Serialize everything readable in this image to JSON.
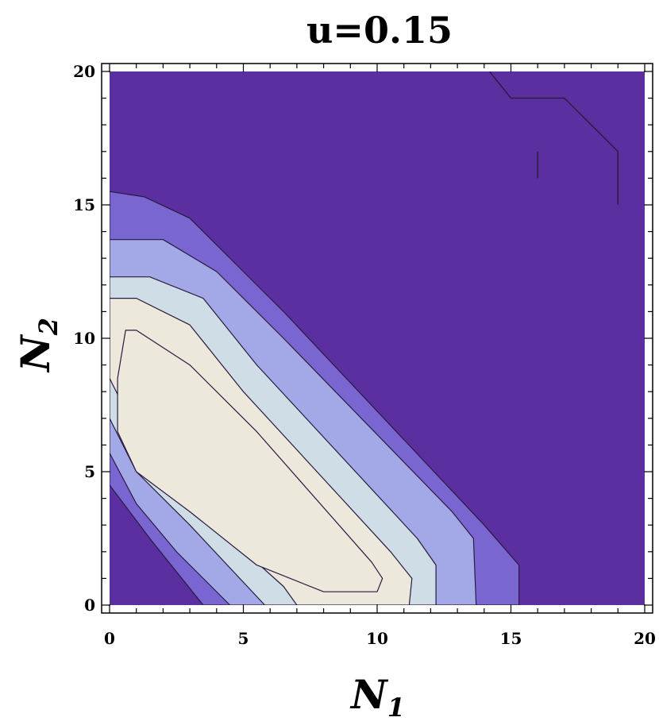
{
  "chart_data": {
    "type": "contour",
    "title": "u=0.15",
    "xlabel": {
      "main": "N",
      "sub": "1"
    },
    "ylabel": {
      "main": "N",
      "sub": "2"
    },
    "xlim": [
      0,
      20
    ],
    "ylim": [
      0,
      20
    ],
    "xticks": [
      0,
      5,
      10,
      15,
      20
    ],
    "yticks": [
      0,
      5,
      10,
      15,
      20
    ],
    "grid": false,
    "colors": {
      "background_level": "#5b2fa0",
      "levels": [
        "#7a66d0",
        "#a3a8e6",
        "#cfdde6",
        "#ece8dc"
      ],
      "contour_line": "#2a1a3e",
      "frame": "#000000"
    },
    "contour_bands": [
      {
        "level": 1,
        "boundary": [
          [
            0,
            4.5
          ],
          [
            1.5,
            2.5
          ],
          [
            3.5,
            0
          ],
          [
            15.3,
            0
          ],
          [
            15.3,
            1.5
          ],
          [
            14,
            3
          ],
          [
            6.5,
            11
          ],
          [
            5,
            12.5
          ],
          [
            3,
            14.5
          ],
          [
            1.3,
            15.3
          ],
          [
            0,
            15.5
          ]
        ]
      },
      {
        "level": 2,
        "boundary": [
          [
            0,
            5.7
          ],
          [
            1,
            3.8
          ],
          [
            2.5,
            2
          ],
          [
            4.5,
            0
          ],
          [
            13.7,
            0
          ],
          [
            13.6,
            2.5
          ],
          [
            12.8,
            3.5
          ],
          [
            6.5,
            10
          ],
          [
            4,
            12.5
          ],
          [
            2,
            13.7
          ],
          [
            0,
            13.7
          ]
        ]
      },
      {
        "level": 3,
        "boundary": [
          [
            0,
            7
          ],
          [
            1,
            5
          ],
          [
            3,
            3
          ],
          [
            5.8,
            0
          ],
          [
            12.2,
            0
          ],
          [
            12.2,
            1.5
          ],
          [
            11.5,
            2.5
          ],
          [
            5.5,
            9
          ],
          [
            3.5,
            11.5
          ],
          [
            1.5,
            12.3
          ],
          [
            0,
            12.3
          ]
        ]
      },
      {
        "level": 4,
        "boundary": [
          [
            0,
            8.5
          ],
          [
            1,
            6.5
          ],
          [
            2.5,
            4.5
          ],
          [
            4.5,
            2.5
          ],
          [
            6.5,
            0.7
          ],
          [
            7,
            0
          ],
          [
            11.2,
            0
          ],
          [
            11.3,
            1
          ],
          [
            10.5,
            2
          ],
          [
            5,
            8
          ],
          [
            3,
            10.5
          ],
          [
            1,
            11.5
          ],
          [
            0,
            11.5
          ]
        ]
      },
      {
        "level": 5,
        "boundary": [
          [
            0.3,
            8.5
          ],
          [
            0.3,
            6.5
          ],
          [
            1,
            5
          ],
          [
            3,
            3.5
          ],
          [
            5.5,
            1.5
          ],
          [
            8,
            0.5
          ],
          [
            10,
            0.5
          ],
          [
            10.2,
            1
          ],
          [
            9.8,
            1.6
          ],
          [
            5.5,
            6.5
          ],
          [
            3,
            9
          ],
          [
            1,
            10.3
          ],
          [
            0.6,
            10.3
          ]
        ]
      }
    ],
    "extra_contours": [
      {
        "points": [
          [
            14.2,
            20
          ],
          [
            15,
            19
          ],
          [
            17,
            19
          ],
          [
            19,
            17
          ],
          [
            19,
            15
          ]
        ]
      },
      {
        "points": [
          [
            16,
            17
          ],
          [
            16,
            16
          ]
        ]
      }
    ]
  }
}
